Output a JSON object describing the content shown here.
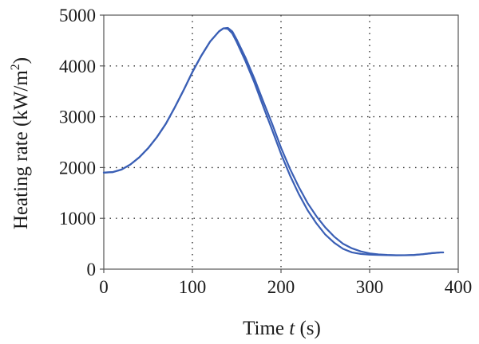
{
  "chart_data": {
    "type": "line",
    "xlabel_prefix": "Time ",
    "xlabel_var": "t",
    "xlabel_suffix": " (s)",
    "ylabel_main": "Heating rate (kW/m",
    "ylabel_sup": "2",
    "ylabel_close": ")",
    "xlim": [
      0,
      400
    ],
    "ylim": [
      0,
      5000
    ],
    "xticks": [
      0,
      100,
      200,
      300,
      400
    ],
    "yticks": [
      0,
      1000,
      2000,
      3000,
      4000,
      5000
    ],
    "xtick_labels": [
      "0",
      "100",
      "200",
      "300",
      "400"
    ],
    "ytick_labels": [
      "0",
      "1000",
      "2000",
      "3000",
      "4000",
      "5000"
    ],
    "grid": true,
    "line_color": "#3a5fb5",
    "series": [
      {
        "x": [
          0,
          10,
          20,
          30,
          40,
          50,
          60,
          70,
          80,
          90,
          100,
          110,
          120,
          130,
          135,
          140,
          145,
          150,
          160,
          170,
          180,
          190,
          200,
          210,
          220,
          230,
          240,
          250,
          260,
          270,
          280,
          290,
          300,
          310,
          320,
          330,
          340,
          350,
          360,
          370,
          380,
          383
        ],
        "y": [
          1900,
          1910,
          1960,
          2060,
          2200,
          2380,
          2600,
          2860,
          3180,
          3520,
          3880,
          4200,
          4480,
          4680,
          4740,
          4750,
          4680,
          4520,
          4160,
          3750,
          3300,
          2860,
          2390,
          1980,
          1620,
          1300,
          1040,
          820,
          640,
          500,
          410,
          350,
          310,
          290,
          280,
          275,
          275,
          280,
          295,
          315,
          330,
          330
        ]
      },
      {
        "x": [
          0,
          10,
          20,
          30,
          40,
          50,
          60,
          70,
          80,
          90,
          100,
          110,
          120,
          130,
          135,
          140,
          145,
          150,
          160,
          170,
          180,
          190,
          200,
          210,
          220,
          230,
          240,
          250,
          260,
          270,
          280,
          290,
          300,
          310,
          320,
          330,
          340,
          350,
          360,
          370,
          380,
          383
        ],
        "y": [
          1900,
          1910,
          1960,
          2060,
          2200,
          2380,
          2600,
          2860,
          3180,
          3520,
          3880,
          4200,
          4480,
          4680,
          4740,
          4730,
          4640,
          4470,
          4090,
          3670,
          3200,
          2740,
          2270,
          1850,
          1480,
          1160,
          900,
          680,
          520,
          400,
          330,
          300,
          285,
          280,
          275,
          272,
          273,
          278,
          293,
          313,
          328,
          328
        ]
      }
    ]
  }
}
